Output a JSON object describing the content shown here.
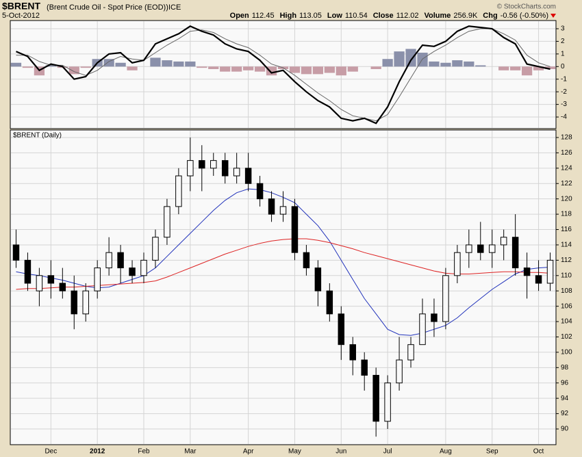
{
  "header": {
    "symbol": "$BRENT",
    "description": "(Brent Crude Oil - Spot Price (EOD))",
    "exchange": "ICE",
    "date": "5-Oct-2012",
    "credit": "© StockCharts.com",
    "stats": [
      {
        "label": "Open",
        "value": 112.45
      },
      {
        "label": "High",
        "value": 113.05
      },
      {
        "label": "Low",
        "value": 110.54
      },
      {
        "label": "Close",
        "value": 112.02
      },
      {
        "label": "Volume",
        "value": "256.9K"
      },
      {
        "label": "Chg",
        "value": "-0.56 (-0.50%)"
      }
    ]
  },
  "chart_data": [
    {
      "type": "macd",
      "ylim": [
        -4.92,
        3.65
      ],
      "yticks": [
        -4,
        -3,
        -2,
        -1,
        0,
        1,
        2,
        3
      ],
      "grid": true,
      "series": [
        {
          "type": "bar",
          "color": "#8a90aa",
          "negative_color": "#c79da6",
          "values": [
            0.3,
            -0.1,
            -0.7,
            0.1,
            -0.1,
            -0.6,
            -0.1,
            0.6,
            0.6,
            0.3,
            -0.3,
            0,
            0.7,
            0.5,
            0.4,
            0.4,
            -0.1,
            -0.2,
            -0.4,
            -0.4,
            -0.3,
            -0.4,
            -0.7,
            -0.2,
            -0.5,
            -0.6,
            -0.6,
            -0.5,
            -0.7,
            -0.4,
            0,
            -0.2,
            0.6,
            1.2,
            1.4,
            1.1,
            0.4,
            0.3,
            0.5,
            0.4,
            0.1,
            0,
            -0.3,
            -0.3,
            -0.7,
            -0.3,
            -0.2
          ]
        },
        {
          "type": "line",
          "color": "#666666",
          "values": [
            0.9,
            0.9,
            0.4,
            0.1,
            0.1,
            -0.4,
            -0.7,
            -0.3,
            0.4,
            0.8,
            0.6,
            0.5,
            1.1,
            1.7,
            2.2,
            2.8,
            2.9,
            2.7,
            2.2,
            1.8,
            1.5,
            0.9,
            0.2,
            -0.1,
            -0.7,
            -1.4,
            -2.1,
            -2.7,
            -3.4,
            -3.9,
            -4.1,
            -4.3,
            -3.8,
            -2.4,
            -0.9,
            0.6,
            1.2,
            1.7,
            2.3,
            2.8,
            3.0,
            3.0,
            2.6,
            2.1,
            0.9,
            0.3,
            0
          ]
        },
        {
          "type": "line",
          "color": "#000000",
          "values": [
            1.2,
            0.8,
            -0.3,
            0.2,
            0,
            -1.0,
            -0.8,
            0.3,
            1.0,
            1.1,
            0.3,
            0.5,
            1.8,
            2.2,
            2.6,
            3.2,
            2.8,
            2.5,
            1.8,
            1.4,
            1.2,
            0.5,
            -0.5,
            -0.3,
            -1.2,
            -2.0,
            -2.7,
            -3.2,
            -4.1,
            -4.3,
            -4.1,
            -4.5,
            -3.2,
            -1.2,
            0.5,
            1.7,
            1.6,
            2.0,
            2.8,
            3.2,
            3.1,
            3.0,
            2.3,
            1.8,
            0.2,
            0,
            -0.2
          ]
        }
      ]
    },
    {
      "type": "candlestick",
      "title": "$BRENT (Daily)",
      "ylim": [
        87.95,
        128.98
      ],
      "yticks": [
        90,
        92,
        94,
        96,
        98,
        100,
        102,
        104,
        106,
        108,
        110,
        112,
        114,
        116,
        118,
        120,
        122,
        124,
        126,
        128
      ],
      "grid": true,
      "color": "#000000",
      "categories": [
        null,
        null,
        null,
        "Dec",
        null,
        null,
        null,
        "2012",
        null,
        null,
        null,
        "Feb",
        null,
        null,
        null,
        "Mar",
        null,
        null,
        null,
        null,
        "Apr",
        null,
        null,
        null,
        "May",
        null,
        null,
        null,
        "Jun",
        null,
        null,
        null,
        "Jul",
        null,
        null,
        null,
        null,
        "Aug",
        null,
        null,
        null,
        "Sep",
        null,
        null,
        null,
        "Oct",
        null
      ],
      "open": [
        114,
        112,
        108,
        110,
        109,
        108,
        105,
        108,
        111,
        113,
        111,
        110,
        112,
        115,
        119,
        123,
        125,
        124,
        125,
        123,
        124,
        122,
        120,
        118,
        119,
        113,
        111,
        108,
        105,
        101,
        99,
        97,
        91,
        96,
        99,
        101,
        105,
        104,
        110,
        113,
        114,
        113,
        114,
        115,
        111,
        110,
        109
      ],
      "high": [
        116,
        113,
        111,
        112,
        111,
        110,
        109,
        112,
        115,
        114,
        112,
        113,
        116,
        120,
        124,
        128,
        127,
        126,
        126,
        126,
        126,
        123,
        121,
        121,
        120,
        114,
        112,
        109,
        106,
        102,
        100,
        98,
        97,
        102,
        102,
        107,
        107,
        111,
        114,
        116,
        117,
        116,
        116,
        118,
        113,
        112,
        113
      ],
      "low": [
        111,
        108,
        106,
        107,
        107,
        103,
        104,
        107,
        110,
        109,
        109,
        109,
        111,
        114,
        118,
        121,
        121,
        123,
        122,
        122,
        121,
        119,
        117,
        117,
        112,
        110,
        106,
        104,
        99,
        97,
        95,
        89,
        90,
        95,
        98,
        101,
        102,
        103,
        109,
        111,
        112,
        111,
        112,
        110,
        107,
        108,
        108
      ],
      "close": [
        112,
        109,
        110,
        109,
        108,
        105,
        108,
        111,
        113,
        111,
        110,
        112,
        115,
        119,
        123,
        125,
        124,
        125,
        123,
        124,
        122,
        120,
        118,
        119,
        113,
        111,
        108,
        105,
        101,
        99,
        97,
        91,
        96,
        99,
        101,
        105,
        104,
        110,
        113,
        114,
        113,
        114,
        115,
        111,
        110,
        109,
        112
      ],
      "series": [
        {
          "color": "#2233bb",
          "values": [
            110.5,
            110.2,
            110,
            109.7,
            109.4,
            109,
            108.6,
            108.4,
            108.5,
            109,
            109.5,
            110,
            111,
            112.5,
            114,
            115.5,
            117,
            118.5,
            119.8,
            120.8,
            121.3,
            121.2,
            120.8,
            120.2,
            119.5,
            118,
            116.5,
            114.5,
            112,
            109.5,
            107,
            105,
            103,
            102.3,
            102.2,
            102.5,
            103,
            103.5,
            104.5,
            105.8,
            107,
            108.2,
            109.2,
            110.2,
            110.8,
            111,
            111.1
          ]
        },
        {
          "color": "#dd2222",
          "values": [
            108.2,
            108.3,
            108.3,
            108.4,
            108.5,
            108.5,
            108.6,
            108.7,
            108.8,
            108.9,
            109,
            109.1,
            109.3,
            109.8,
            110.4,
            111,
            111.6,
            112.2,
            112.8,
            113.3,
            113.8,
            114.2,
            114.5,
            114.7,
            114.8,
            114.8,
            114.6,
            114.3,
            113.9,
            113.5,
            113,
            112.6,
            112.2,
            111.8,
            111.4,
            111,
            110.6,
            110.3,
            110.2,
            110.2,
            110.3,
            110.4,
            110.5,
            110.5,
            110.4,
            110.4,
            110.3
          ]
        }
      ]
    }
  ]
}
